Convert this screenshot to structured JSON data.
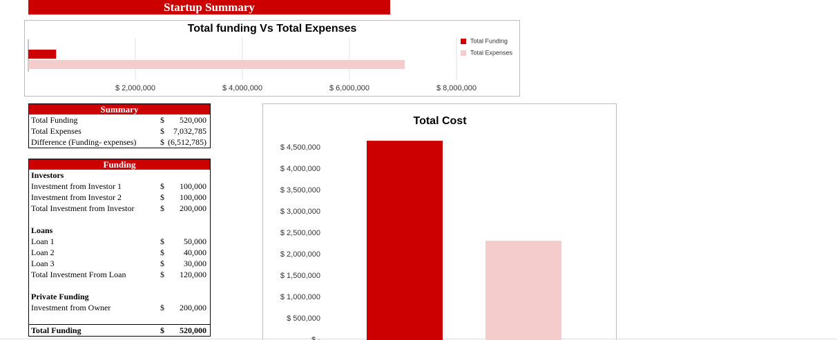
{
  "banner": {
    "title": "Startup Summary"
  },
  "chart_data": [
    {
      "type": "hbar",
      "title": "Total funding Vs Total Expenses",
      "series": [
        {
          "name": "Total Funding",
          "color": "#cc0000",
          "values": [
            520000
          ]
        },
        {
          "name": "Total Expenses",
          "color": "#f4cccc",
          "values": [
            7032785
          ]
        }
      ],
      "xlim": [
        0,
        8000000
      ],
      "xticks": [
        {
          "value": 2000000,
          "label": "$ 2,000,000"
        },
        {
          "value": 4000000,
          "label": "$ 4,000,000"
        },
        {
          "value": 6000000,
          "label": "$ 6,000,000"
        },
        {
          "value": 8000000,
          "label": "$ 8,000,000"
        }
      ],
      "grid": true,
      "legend": "right"
    },
    {
      "type": "bar",
      "title": "Total Cost",
      "values": [
        4660000,
        2320000
      ],
      "colors": [
        "#cc0000",
        "#f4cccc"
      ],
      "ylim": [
        0,
        5000000
      ],
      "yticks": [
        {
          "value": 0,
          "label": "$ -"
        },
        {
          "value": 500000,
          "label": "$ 500,000"
        },
        {
          "value": 1000000,
          "label": "$ 1,000,000"
        },
        {
          "value": 1500000,
          "label": "$ 1,500,000"
        },
        {
          "value": 2000000,
          "label": "$ 2,000,000"
        },
        {
          "value": 2500000,
          "label": "$ 2,500,000"
        },
        {
          "value": 3000000,
          "label": "$ 3,000,000"
        },
        {
          "value": 3500000,
          "label": "$ 3,500,000"
        },
        {
          "value": 4000000,
          "label": "$ 4,000,000"
        },
        {
          "value": 4500000,
          "label": "$ 4,500,000"
        }
      ]
    }
  ],
  "summary": {
    "title": "Summary",
    "rows": [
      [
        "Total Funding",
        "$",
        "520,000"
      ],
      [
        "Total Expenses",
        "$",
        "7,032,785"
      ],
      [
        "Difference (Funding- expenses)",
        "$",
        "(6,512,785)"
      ]
    ]
  },
  "funding": {
    "title": "Funding",
    "sections": [
      {
        "title": "Investors",
        "rows": [
          [
            "Investment from Investor 1",
            "$",
            "100,000"
          ],
          [
            "Investment from Investor 2",
            "$",
            "100,000"
          ],
          [
            "Total Investment from Investor",
            "$",
            "200,000"
          ]
        ]
      },
      {
        "title": "Loans",
        "rows": [
          [
            "Loan 1",
            "$",
            "50,000"
          ],
          [
            "Loan 2",
            "$",
            "40,000"
          ],
          [
            "Loan 3",
            "$",
            "30,000"
          ],
          [
            "Total Investment From Loan",
            "$",
            "120,000"
          ]
        ]
      },
      {
        "title": "Private Funding",
        "rows": [
          [
            "Investment from Owner",
            "$",
            "200,000"
          ]
        ]
      }
    ],
    "total": [
      "Total Funding",
      "$",
      "520,000"
    ]
  }
}
